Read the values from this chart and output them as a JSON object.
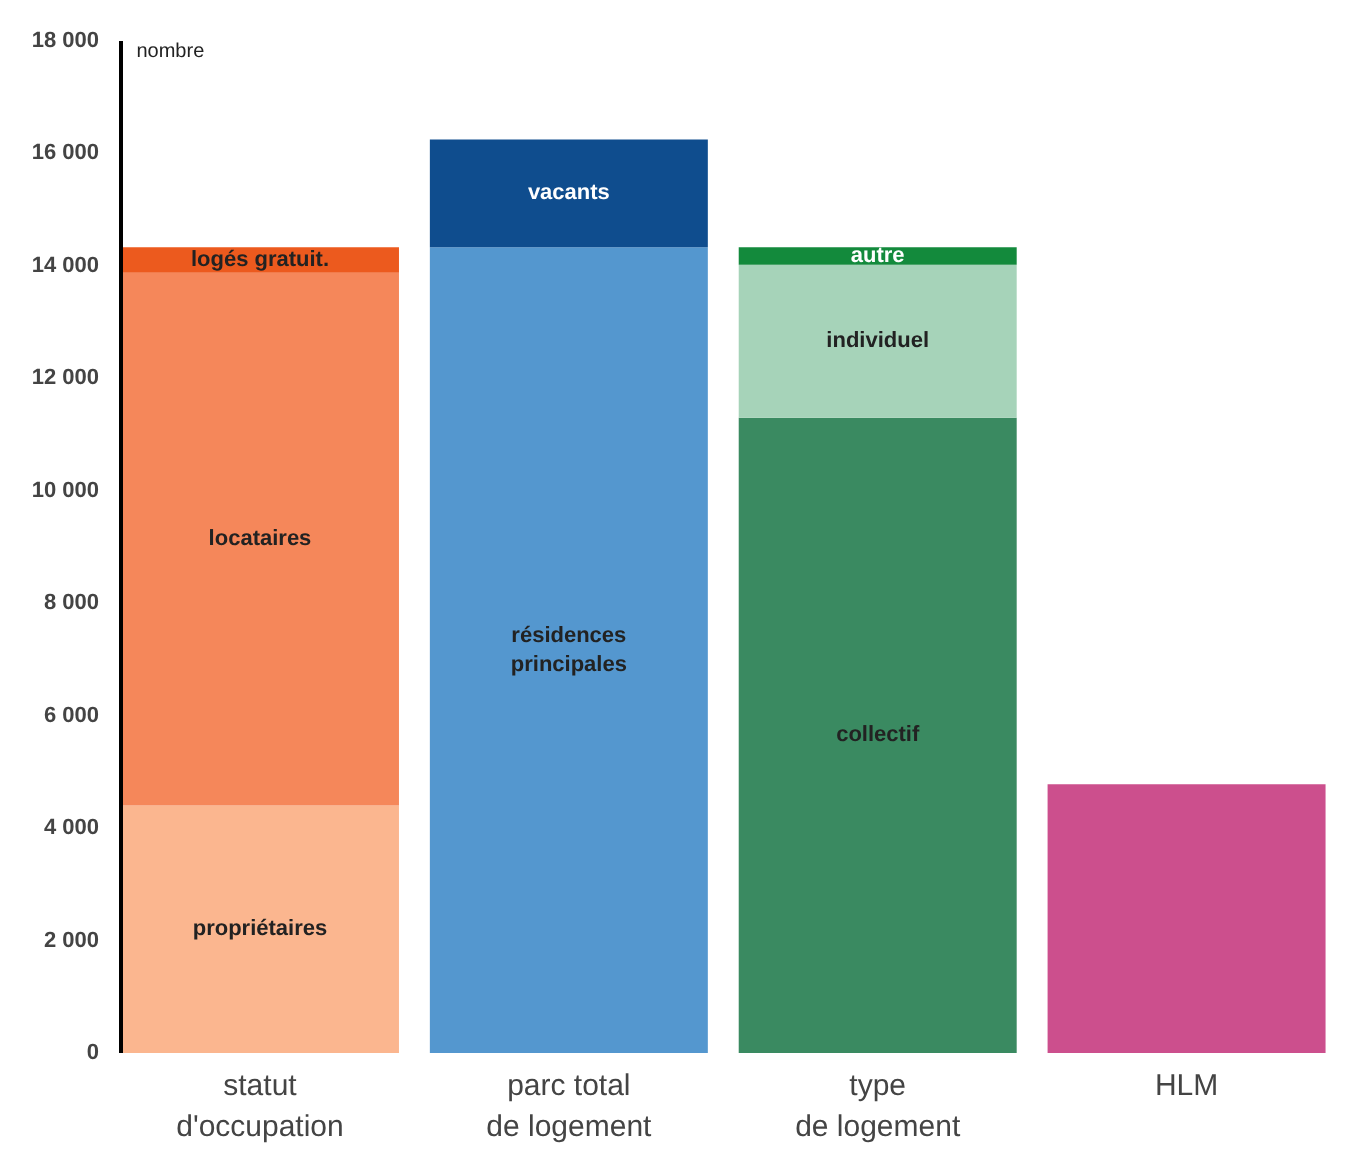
{
  "chart_data": {
    "type": "bar",
    "stacked": true,
    "ylabel": "nombre",
    "categories": [
      "statut\nd'occupation",
      "parc total\nde logement",
      "type\nde logement",
      "HLM"
    ],
    "ylim": [
      0,
      18000
    ],
    "yticks": [
      0,
      {
        "value": 2000,
        "label": "2 000"
      },
      {
        "value": 4000,
        "label": "4 000"
      },
      {
        "value": 6000,
        "label": "6 000"
      },
      {
        "value": 8000,
        "label": "8 000"
      },
      {
        "value": 10000,
        "label": "10 000"
      },
      {
        "value": 12000,
        "label": "12 000"
      },
      {
        "value": 14000,
        "label": "14 000"
      },
      {
        "value": 16000,
        "label": "16 000"
      },
      {
        "value": 18000,
        "label": "18 000"
      }
    ],
    "grid": false,
    "series": [
      {
        "name": "propriétaires",
        "color": "#fbb68f",
        "values": [
          4400,
          null,
          null,
          null
        ]
      },
      {
        "name": "locataires",
        "color": "#f5875a",
        "values": [
          9480,
          null,
          null,
          null
        ]
      },
      {
        "name": "logés gratuit.",
        "color": "#ec5a1e",
        "values": [
          450,
          null,
          null,
          null
        ]
      },
      {
        "name": "résidences\nprincipales",
        "color": "#5497cf",
        "values": [
          null,
          14330,
          null,
          null
        ]
      },
      {
        "name": "vacants",
        "color": "#0f4d8e",
        "values": [
          null,
          1920,
          null,
          null
        ]
      },
      {
        "name": "collectif",
        "color": "#3a8a61",
        "values": [
          null,
          null,
          11300,
          null
        ]
      },
      {
        "name": "individuel",
        "color": "#a6d3b9",
        "values": [
          null,
          null,
          2720,
          null
        ]
      },
      {
        "name": "autre",
        "color": "#138a3c",
        "values": [
          null,
          null,
          310,
          null
        ]
      },
      {
        "color": "#cc4f8d",
        "values": [
          null,
          null,
          null,
          4780
        ]
      }
    ]
  }
}
